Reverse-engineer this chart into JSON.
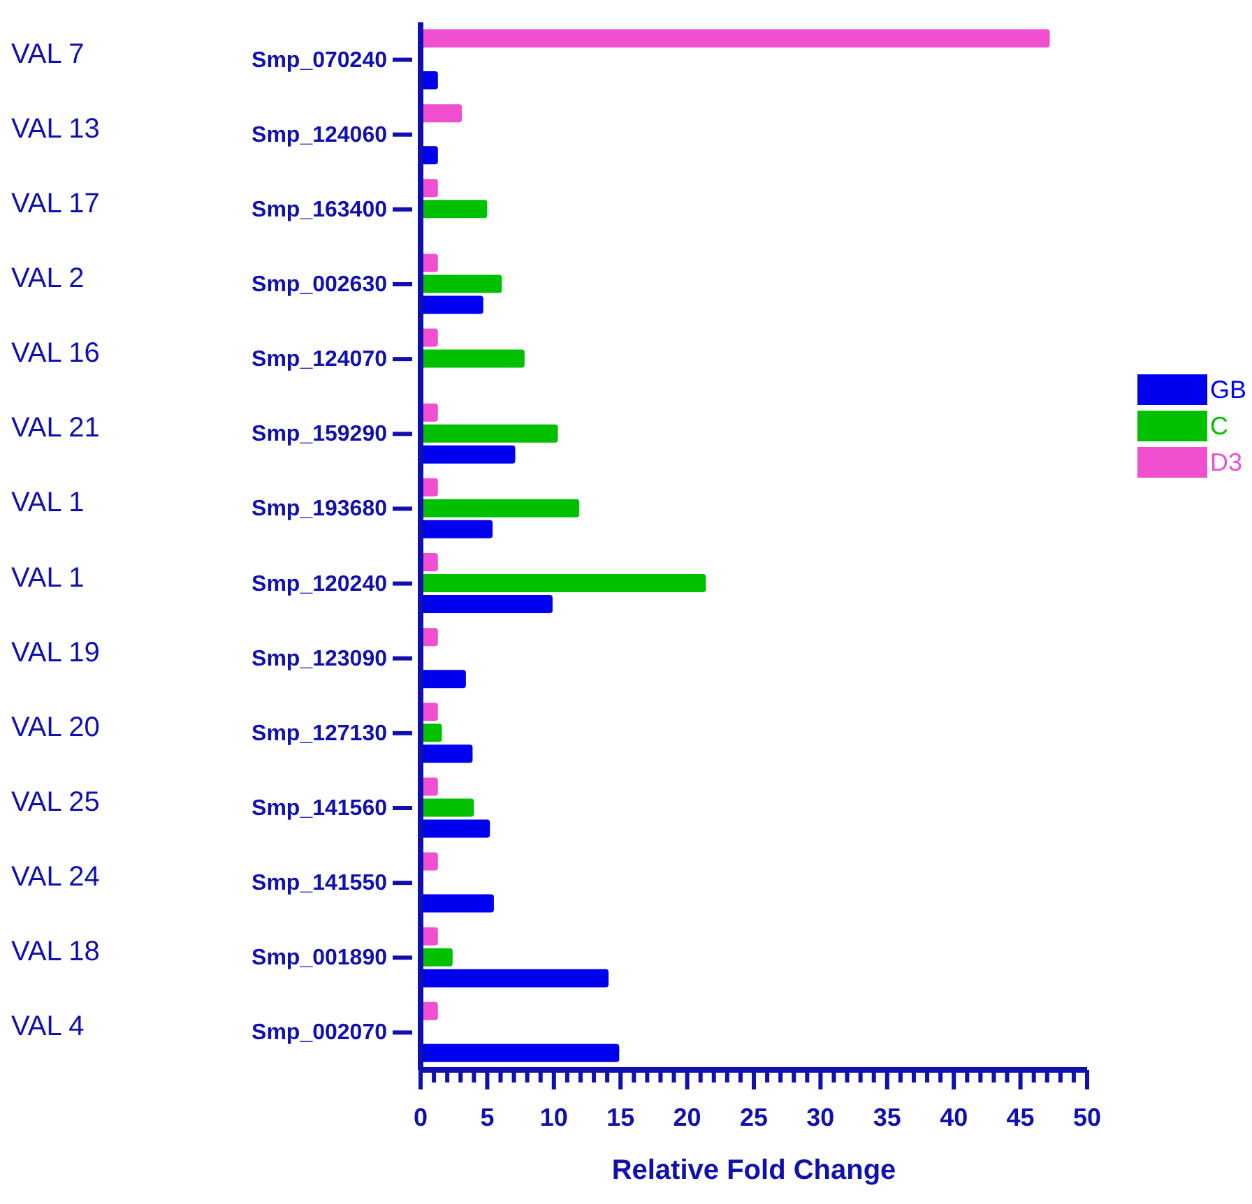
{
  "chart_data": {
    "type": "bar",
    "orientation": "horizontal",
    "xlabel": "Relative Fold Change",
    "categories": [
      "Smp_070240",
      "Smp_124060",
      "Smp_163400",
      "Smp_002630",
      "Smp_124070",
      "Smp_159290",
      "Smp_193680",
      "Smp_120240",
      "Smp_123090",
      "Smp_127130",
      "Smp_141560",
      "Smp_141550",
      "Smp_001890",
      "Smp_002070"
    ],
    "y2_categories": [
      "VAL 7",
      "VAL 13",
      "VAL 17",
      "VAL 2",
      "VAL 16",
      "VAL 21",
      "VAL 1",
      "VAL 1",
      "VAL 19",
      "VAL 20",
      "VAL 25",
      "VAL 24",
      "VAL 18",
      "VAL 4"
    ],
    "series": [
      {
        "name": "GB",
        "color": "#0000f0",
        "values": [
          1.3,
          1.3,
          null,
          4.7,
          null,
          7.1,
          5.4,
          9.9,
          3.4,
          3.9,
          5.2,
          5.5,
          14.1,
          14.9
        ]
      },
      {
        "name": "C",
        "color": "#00c000",
        "values": [
          null,
          null,
          5.0,
          6.1,
          7.8,
          10.3,
          11.9,
          21.4,
          null,
          1.6,
          4.0,
          null,
          2.4,
          null
        ]
      },
      {
        "name": "D3",
        "color": "#f050d0",
        "values": [
          47.2,
          3.1,
          1.3,
          1.3,
          1.3,
          1.3,
          1.3,
          1.3,
          1.3,
          1.3,
          1.3,
          1.3,
          1.3,
          1.3
        ]
      }
    ],
    "xlim": [
      0,
      50
    ],
    "xticks": [
      0,
      {
        "value": 1,
        "label": null
      },
      {
        "value": 2,
        "label": null
      },
      {
        "value": 3,
        "label": null
      },
      {
        "value": 4,
        "label": null
      },
      5,
      {
        "value": 6,
        "label": null
      },
      {
        "value": 7,
        "label": null
      },
      {
        "value": 8,
        "label": null
      },
      {
        "value": 9,
        "label": null
      },
      10,
      {
        "value": 11,
        "label": null
      },
      {
        "value": 12,
        "label": null
      },
      {
        "value": 13,
        "label": null
      },
      {
        "value": 14,
        "label": null
      },
      15,
      {
        "value": 16,
        "label": null
      },
      {
        "value": 17,
        "label": null
      },
      {
        "value": 18,
        "label": null
      },
      {
        "value": 19,
        "label": null
      },
      20,
      {
        "value": 21,
        "label": null
      },
      {
        "value": 22,
        "label": null
      },
      {
        "value": 23,
        "label": null
      },
      {
        "value": 24,
        "label": null
      },
      25,
      {
        "value": 26,
        "label": null
      },
      {
        "value": 27,
        "label": null
      },
      {
        "value": 28,
        "label": null
      },
      {
        "value": 29,
        "label": null
      },
      30,
      {
        "value": 31,
        "label": null
      },
      {
        "value": 32,
        "label": null
      },
      {
        "value": 33,
        "label": null
      },
      {
        "value": 34,
        "label": null
      },
      35,
      {
        "value": 36,
        "label": null
      },
      {
        "value": 37,
        "label": null
      },
      {
        "value": 38,
        "label": null
      },
      {
        "value": 39,
        "label": null
      },
      40,
      {
        "value": 41,
        "label": null
      },
      {
        "value": 42,
        "label": null
      },
      {
        "value": 43,
        "label": null
      },
      {
        "value": 44,
        "label": null
      },
      45,
      {
        "value": 46,
        "label": null
      },
      {
        "value": 47,
        "label": null
      },
      {
        "value": 48,
        "label": null
      },
      {
        "value": 49,
        "label": null
      },
      50
    ],
    "grid": false,
    "legend": "right"
  }
}
